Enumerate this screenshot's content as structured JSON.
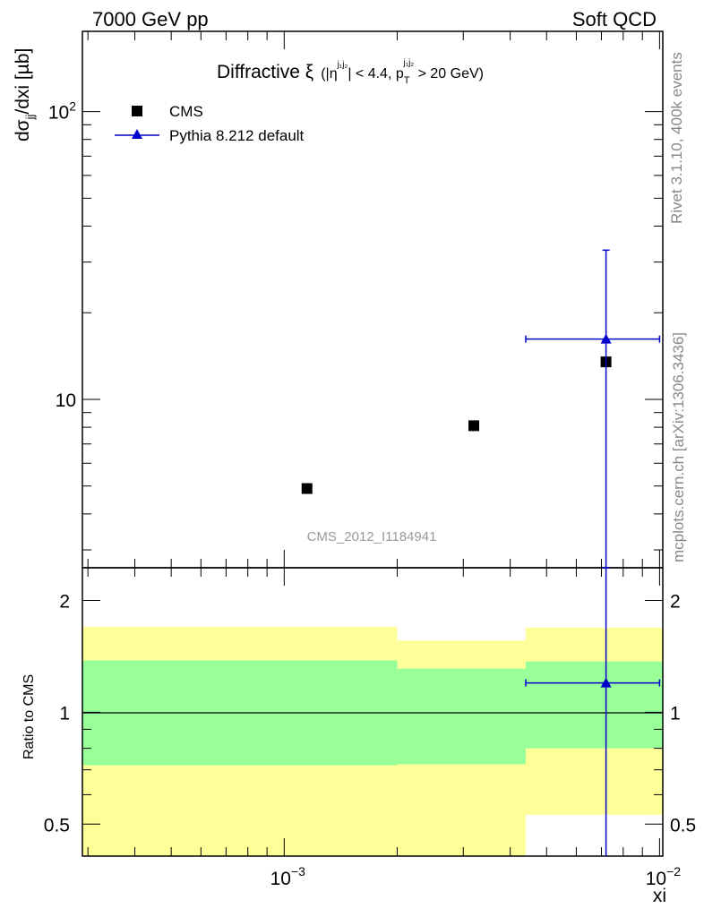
{
  "header": {
    "left": "7000 GeV pp",
    "right": "Soft QCD"
  },
  "side_labels": {
    "rivet": "Rivet 3.1.10,  400k events",
    "mcplots": "mcplots.cern.ch [arXiv:1306.3436]"
  },
  "colors": {
    "cms": "#000000",
    "pythia": "#0000cc",
    "band_outer": "#ffff99",
    "band_inner": "#99ff99"
  },
  "chart_data": {
    "type": "scatter",
    "title_main": "Diffractive ξ",
    "title_cut": "(|η",
    "title_cut_sup": "j₁j₂",
    "title_cut2": "| < 4.4, p",
    "title_pt_sub": "T",
    "title_pt_sup": "j₁j₂",
    "title_cut3": " > 20 GeV)",
    "analysis_id": "CMS_2012_I1184941",
    "xlabel": "xi",
    "ylabel": "dσjj/dxi [µb]",
    "ylabel_main": "dσ",
    "ylabel_sub": "jj",
    "ylabel_rest": "/dxi [µb]",
    "ratio_ylabel": "Ratio to CMS",
    "x_scale": "log",
    "xlim": [
      0.00029,
      0.0102
    ],
    "ylim": [
      2.6,
      190
    ],
    "ratio_ylim": [
      0.41,
      2.45
    ],
    "x_ticks": [
      {
        "value": 0.001,
        "base": "10",
        "exp": "−3"
      },
      {
        "value": 0.01,
        "base": "10",
        "exp": "−2"
      }
    ],
    "y_ticks": [
      {
        "value": 10,
        "label": "10",
        "base": "",
        "exp": ""
      },
      {
        "value": 100,
        "label": "",
        "base": "10",
        "exp": "2"
      }
    ],
    "ratio_ticks": [
      {
        "value": 0.5,
        "label": "0.5"
      },
      {
        "value": 1,
        "label": "1"
      },
      {
        "value": 2,
        "label": "2"
      }
    ],
    "legend": {
      "position": "top-left",
      "cms": "CMS",
      "pythia": "Pythia 8.212 default"
    },
    "series": [
      {
        "name": "CMS",
        "marker": "square",
        "x": [
          0.00115,
          0.0032,
          0.0072
        ],
        "y": [
          4.9,
          8.1,
          13.5
        ]
      },
      {
        "name": "Pythia 8.212 default",
        "marker": "triangle",
        "x": [
          0.0072
        ],
        "y": [
          16.2
        ],
        "x_low": [
          0.0044
        ],
        "x_high": [
          0.01
        ],
        "y_low": [
          2.6
        ],
        "y_high": [
          33
        ]
      }
    ],
    "ratio_bands": [
      {
        "x_low": 0.00029,
        "x_high": 0.002,
        "inner": [
          0.72,
          1.38
        ],
        "outer": [
          0.41,
          1.7
        ]
      },
      {
        "x_low": 0.002,
        "x_high": 0.0044,
        "inner": [
          0.725,
          1.31
        ],
        "outer": [
          0.41,
          1.56
        ]
      },
      {
        "x_low": 0.0044,
        "x_high": 0.0102,
        "inner": [
          0.8,
          1.37
        ],
        "outer": [
          0.53,
          1.69
        ]
      }
    ],
    "ratio_points": [
      {
        "x": 0.0072,
        "y": 1.2,
        "x_low": 0.0044,
        "x_high": 0.01,
        "y_low": 0.41,
        "y_high": 2.45
      }
    ]
  }
}
